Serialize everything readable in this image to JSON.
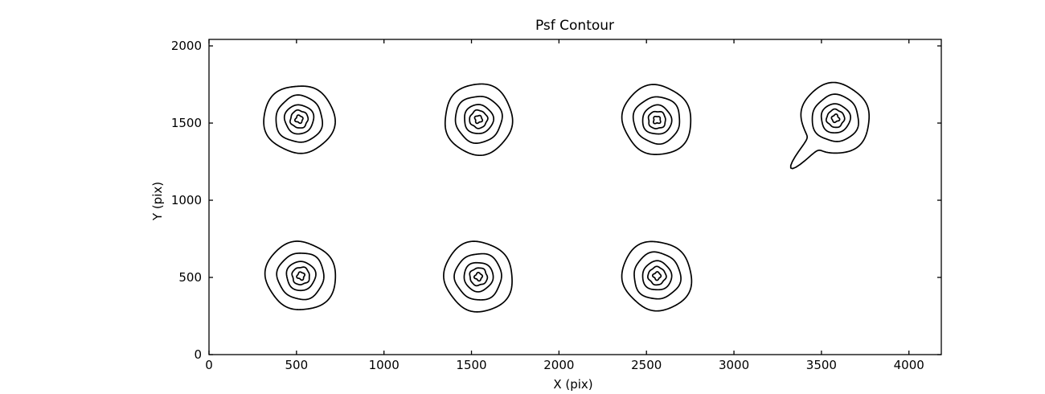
{
  "chart_data": {
    "type": "contour",
    "title": "Psf Contour",
    "xlabel": "X (pix)",
    "ylabel": "Y (pix)",
    "xlim": [
      0,
      4185
    ],
    "ylim": [
      0,
      2042
    ],
    "xticks": [
      0,
      500,
      1000,
      1500,
      2000,
      2500,
      3000,
      3500,
      4000
    ],
    "yticks": [
      0,
      500,
      1000,
      1500,
      2000
    ],
    "grid": false,
    "legend": null,
    "line_color": "#000000",
    "background_color": "#ffffff",
    "contour_levels": 5,
    "ring_radii_x": [
      198,
      133,
      83,
      50,
      21
    ],
    "ring_radii_y": [
      224,
      151,
      94,
      57,
      24
    ],
    "sources": [
      {
        "x": 515,
        "y": 1525
      },
      {
        "x": 1540,
        "y": 1525
      },
      {
        "x": 2560,
        "y": 1520
      },
      {
        "x": 3580,
        "y": 1530,
        "tail_tip": {
          "x": 3340,
          "y": 1225
        }
      },
      {
        "x": 525,
        "y": 510
      },
      {
        "x": 1540,
        "y": 505
      },
      {
        "x": 2560,
        "y": 510
      }
    ]
  }
}
